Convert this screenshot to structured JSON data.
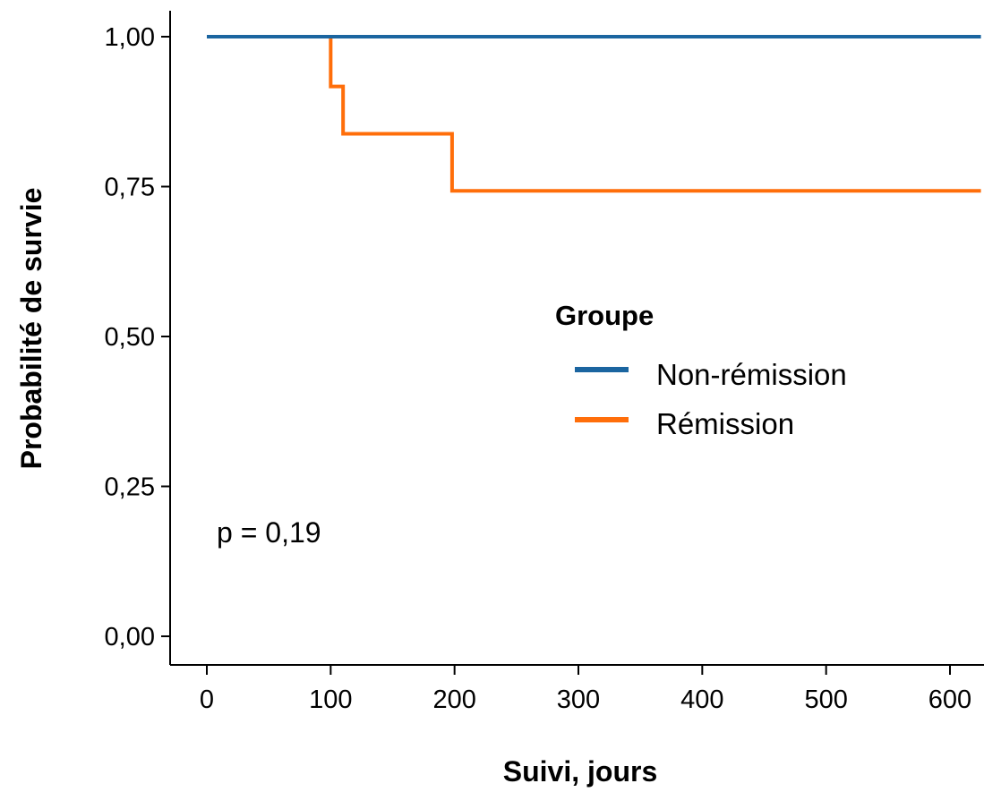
{
  "chart_data": {
    "type": "line",
    "step": true,
    "xlabel": "Suivi, jours",
    "ylabel": "Probabilité de survie",
    "xlim": [
      -30,
      625
    ],
    "ylim": [
      0,
      1
    ],
    "x_ticks": [
      0,
      100,
      200,
      300,
      400,
      500,
      600
    ],
    "x_tick_labels": [
      "0",
      "100",
      "200",
      "300",
      "400",
      "500",
      "600"
    ],
    "y_ticks": [
      0,
      0.25,
      0.5,
      0.75,
      1
    ],
    "y_tick_labels": [
      "0,00",
      "0,25",
      "0,50",
      "0,75",
      "1,00"
    ],
    "grid": false,
    "legend": {
      "title": "Groupe",
      "position": "center-right"
    },
    "annotation": "p = 0,19",
    "series": [
      {
        "name": "Non-rémission",
        "color": "#1b65a0",
        "x": [
          0,
          625
        ],
        "y": [
          1,
          1
        ]
      },
      {
        "name": "Rémission",
        "color": "#ff6e0a",
        "x": [
          0,
          100,
          110,
          198,
          625
        ],
        "y": [
          1,
          0.917,
          0.838,
          0.743,
          0.743
        ]
      }
    ]
  }
}
